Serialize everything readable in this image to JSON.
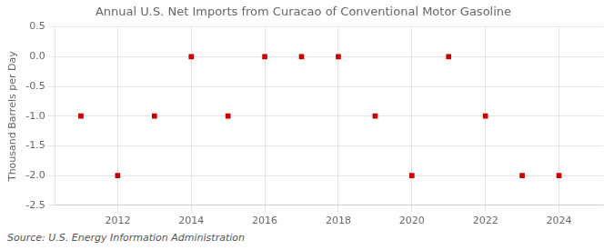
{
  "chart_data": {
    "type": "scatter",
    "title": "Annual U.S. Net Imports from Curacao of Conventional Motor Gasoline",
    "ylabel": "Thousand Barrels per Day",
    "source": "Source: U.S. Energy Information Administration",
    "x": [
      2011,
      2012,
      2013,
      2014,
      2015,
      2016,
      2017,
      2018,
      2019,
      2020,
      2021,
      2022,
      2023,
      2024
    ],
    "values": [
      -1.0,
      -2.0,
      -1.0,
      0.0,
      -1.0,
      0.0,
      0.0,
      0.0,
      -1.0,
      -2.0,
      0.0,
      -1.0,
      -2.0,
      -2.0
    ],
    "xlim": [
      2010.3,
      2025.2
    ],
    "ylim": [
      -2.5,
      0.5
    ],
    "xticks": [
      2012,
      2014,
      2016,
      2018,
      2020,
      2022,
      2024
    ],
    "yticks": [
      0.5,
      {
        "value": 0.0,
        "label": "0.0"
      },
      -0.5,
      {
        "value": -1.0,
        "label": "-1.0"
      },
      -1.5,
      {
        "value": -2.0,
        "label": "-2.0"
      },
      -2.5
    ],
    "color": "#CC0000",
    "marker": "square",
    "grid": true
  }
}
